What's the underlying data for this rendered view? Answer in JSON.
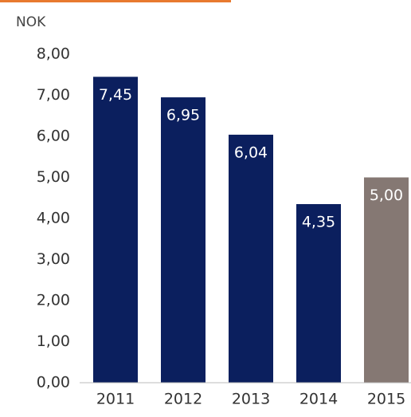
{
  "chart_data": {
    "type": "bar",
    "y_unit_label": "NOK",
    "categories": [
      "2011",
      "2012",
      "2013",
      "2014",
      "2015"
    ],
    "values": [
      7.45,
      6.95,
      6.04,
      4.35,
      5.0
    ],
    "value_labels": [
      "7,45",
      "6,95",
      "6,04",
      "4,35",
      "5,00"
    ],
    "colors": [
      "#0b1f5e",
      "#0b1f5e",
      "#0b1f5e",
      "#0b1f5e",
      "#857873"
    ],
    "ylim": [
      0,
      8
    ],
    "yticks": [
      {
        "value": 0,
        "label": "0,00"
      },
      {
        "value": 1,
        "label": "1,00"
      },
      {
        "value": 2,
        "label": "2,00"
      },
      {
        "value": 3,
        "label": "3,00"
      },
      {
        "value": 4,
        "label": "4,00"
      },
      {
        "value": 5,
        "label": "5,00"
      },
      {
        "value": 6,
        "label": "6,00"
      },
      {
        "value": 7,
        "label": "7,00"
      },
      {
        "value": 8,
        "label": "8,00"
      }
    ],
    "grid": false
  }
}
